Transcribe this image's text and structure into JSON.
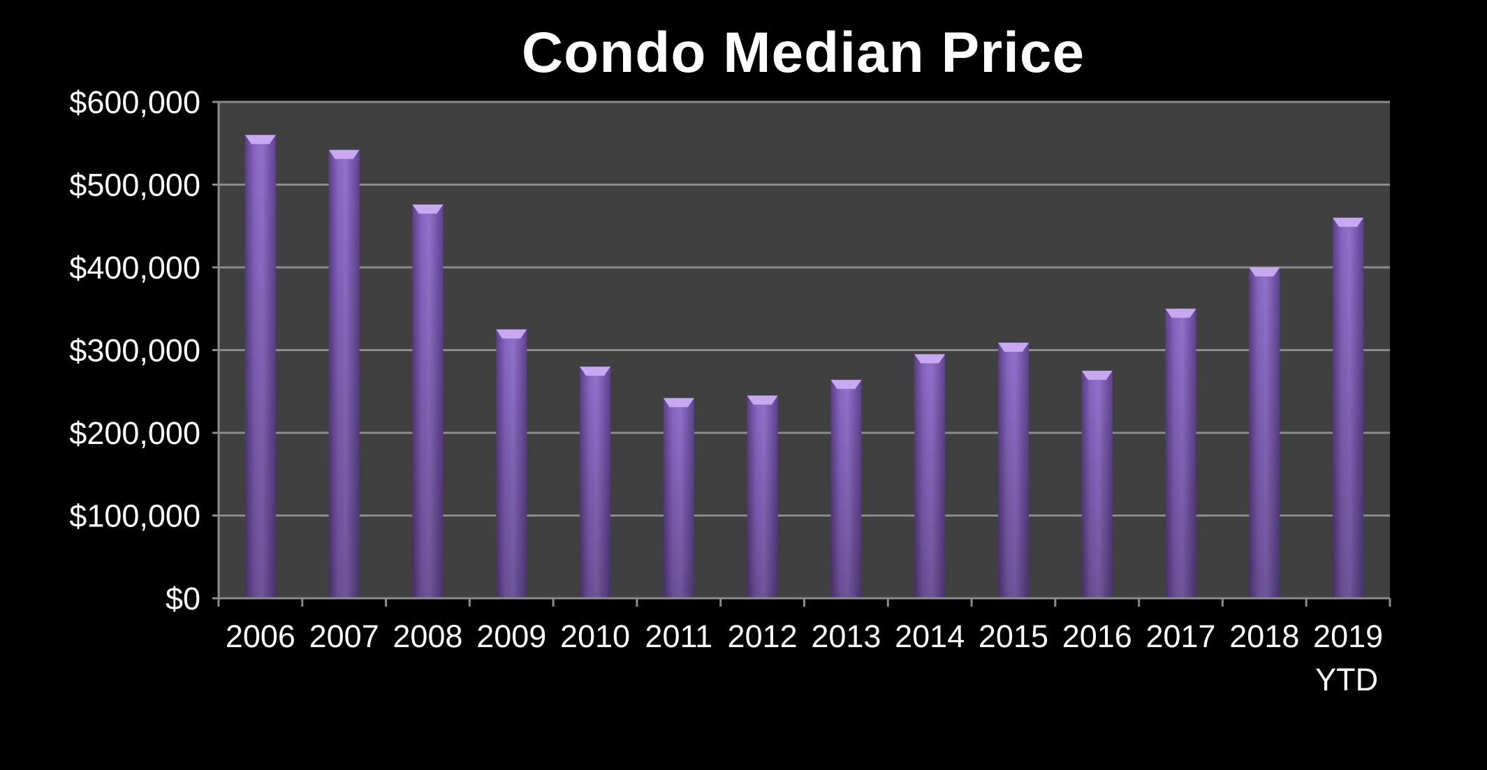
{
  "chart_data": {
    "type": "bar",
    "title": "Condo Median Price",
    "xlabel": "",
    "ylabel": "",
    "categories": [
      "2006",
      "2007",
      "2008",
      "2009",
      "2010",
      "2011",
      "2012",
      "2013",
      "2014",
      "2015",
      "2016",
      "2017",
      "2018",
      "2019 YTD"
    ],
    "values": [
      560000,
      542000,
      476000,
      325000,
      280000,
      242000,
      245000,
      264000,
      295000,
      309000,
      275000,
      350000,
      400000,
      460000
    ],
    "ylim": [
      0,
      600000
    ],
    "yticks": [
      0,
      100000,
      200000,
      300000,
      400000,
      500000,
      600000
    ],
    "ytick_labels": [
      "$0",
      "$100,000",
      "$200,000",
      "$300,000",
      "$400,000",
      "$500,000",
      "$600,000"
    ],
    "grid": true,
    "legend": "none",
    "colors": {
      "background": "#000000",
      "plot_area": "#404040",
      "gridline": "#8c8c8c",
      "bar": "#7e5cb3",
      "bar_top": "#c8a8f0",
      "text": "#ffffff"
    }
  }
}
